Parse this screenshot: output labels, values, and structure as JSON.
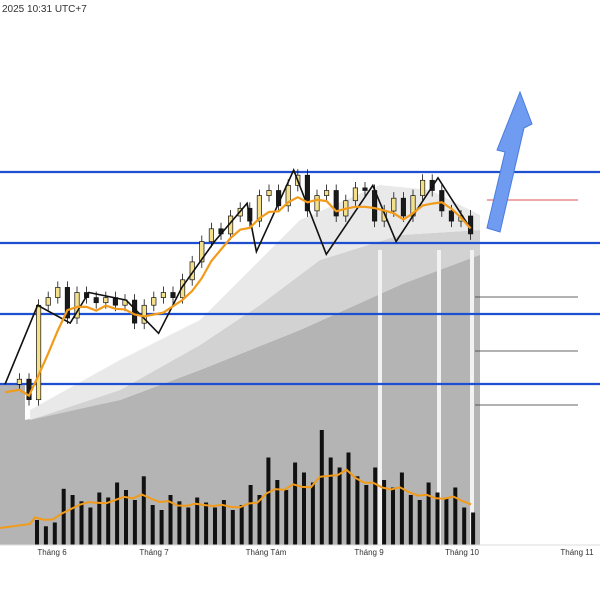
{
  "header": {
    "timestamp": "2025 10:31 UTC+7"
  },
  "colors": {
    "level_line": "#1f4fd0",
    "ma_line": "#f29b1a",
    "candle_up_fill": "#f4e08a",
    "candle_down_fill": "#1a1a1a",
    "zigzag": "#111111",
    "volume_bar": "#111111",
    "arrow": "#6f9cf0",
    "red_marker": "#e05050",
    "band_light": "#e9e9e9",
    "band_mid": "#d2d2d2",
    "band_dark": "#b4b4b4"
  },
  "chart_data": {
    "type": "candlestick",
    "x_ticks": [
      "Tháng 6",
      "Tháng 7",
      "Tháng Tám",
      "Tháng 9",
      "Tháng 10",
      "Tháng 11"
    ],
    "close_path": [
      [
        0.0,
        0.86
      ],
      [
        0.03,
        0.84
      ],
      [
        0.05,
        0.92
      ],
      [
        0.07,
        0.55
      ],
      [
        0.09,
        0.52
      ],
      [
        0.11,
        0.48
      ],
      [
        0.13,
        0.6
      ],
      [
        0.15,
        0.5
      ],
      [
        0.17,
        0.52
      ],
      [
        0.19,
        0.54
      ],
      [
        0.21,
        0.52
      ],
      [
        0.23,
        0.55
      ],
      [
        0.25,
        0.53
      ],
      [
        0.27,
        0.62
      ],
      [
        0.29,
        0.55
      ],
      [
        0.31,
        0.52
      ],
      [
        0.33,
        0.5
      ],
      [
        0.35,
        0.52
      ],
      [
        0.37,
        0.45
      ],
      [
        0.39,
        0.38
      ],
      [
        0.41,
        0.3
      ],
      [
        0.43,
        0.25
      ],
      [
        0.45,
        0.27
      ],
      [
        0.47,
        0.2
      ],
      [
        0.49,
        0.17
      ],
      [
        0.51,
        0.22
      ],
      [
        0.53,
        0.12
      ],
      [
        0.55,
        0.1
      ],
      [
        0.57,
        0.16
      ],
      [
        0.59,
        0.08
      ],
      [
        0.61,
        0.04
      ],
      [
        0.63,
        0.18
      ],
      [
        0.65,
        0.12
      ],
      [
        0.67,
        0.1
      ],
      [
        0.69,
        0.2
      ],
      [
        0.71,
        0.14
      ],
      [
        0.73,
        0.09
      ],
      [
        0.75,
        0.1
      ],
      [
        0.77,
        0.22
      ],
      [
        0.79,
        0.18
      ],
      [
        0.81,
        0.13
      ],
      [
        0.83,
        0.2
      ],
      [
        0.85,
        0.12
      ],
      [
        0.87,
        0.06
      ],
      [
        0.89,
        0.1
      ],
      [
        0.91,
        0.18
      ],
      [
        0.93,
        0.22
      ],
      [
        0.95,
        0.2
      ],
      [
        0.97,
        0.27
      ]
    ],
    "volumes": [
      0.2,
      0.15,
      0.18,
      0.45,
      0.4,
      0.35,
      0.3,
      0.42,
      0.38,
      0.5,
      0.44,
      0.36,
      0.55,
      0.32,
      0.28,
      0.4,
      0.35,
      0.3,
      0.38,
      0.34,
      0.3,
      0.36,
      0.28,
      0.32,
      0.48,
      0.4,
      0.7,
      0.52,
      0.44,
      0.66,
      0.58,
      0.5,
      0.92,
      0.7,
      0.62,
      0.74,
      0.55,
      0.48,
      0.62,
      0.52,
      0.46,
      0.58,
      0.4,
      0.36,
      0.5,
      0.42,
      0.38,
      0.46,
      0.3,
      0.26
    ],
    "levels": [
      0.17,
      0.4,
      0.52,
      0.64
    ],
    "minor_levels": [
      0.33,
      0.49,
      0.58,
      0.67
    ],
    "red_level": 0.33
  }
}
